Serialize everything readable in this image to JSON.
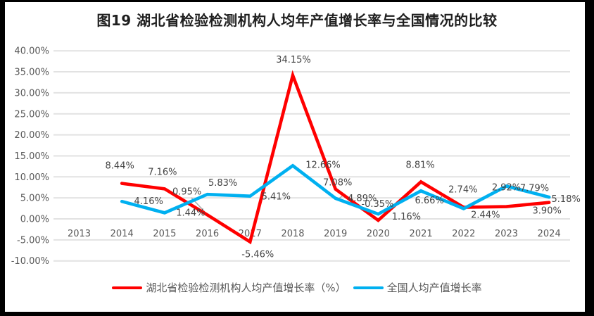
{
  "chart_data": {
    "type": "line",
    "title": "图19 湖北省检验检测机构人均年产值增长率与全国情况的比较",
    "categories": [
      "2013",
      "2014",
      "2015",
      "2016",
      "2017",
      "2018",
      "2019",
      "2020",
      "2021",
      "2022",
      "2023",
      "2024"
    ],
    "series": [
      {
        "name": "湖北省检验检测机构人均产值增长率（%）",
        "color": "#FF0000",
        "values": [
          null,
          8.44,
          7.16,
          0.95,
          -5.46,
          34.15,
          7.08,
          -0.35,
          8.81,
          2.74,
          2.92,
          3.9
        ]
      },
      {
        "name": "全国人均产值增长率",
        "color": "#00B0F0",
        "values": [
          null,
          4.16,
          1.44,
          5.83,
          5.41,
          12.66,
          4.89,
          1.16,
          6.66,
          2.44,
          7.79,
          5.18
        ]
      }
    ],
    "xlabel": "",
    "ylabel": "",
    "ylim": [
      -10,
      40
    ],
    "y_tick_step": 5,
    "y_tick_format": "0.00%",
    "grid": true,
    "data_labels": true,
    "legend_position": "bottom",
    "colors": {
      "gridline": "#E2E2E2",
      "axis_text": "#595959",
      "data_label_text": "#444444",
      "leader_line": "#A6A6A6",
      "frame": "#000000"
    }
  }
}
